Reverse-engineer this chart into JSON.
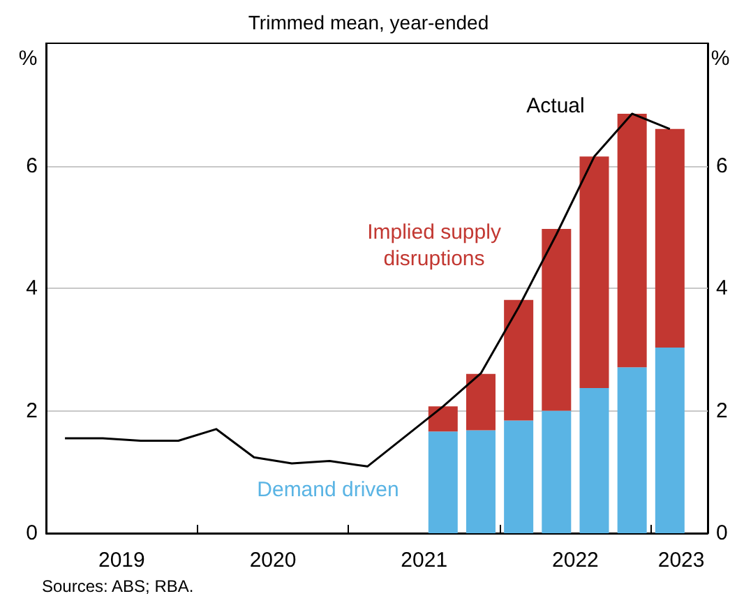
{
  "chart_data": {
    "type": "bar",
    "subtitle": "Trimmed mean, year-ended",
    "ylabel": "%",
    "y2label": "%",
    "stacked": true,
    "x": [
      2021.625,
      2021.875,
      2022.125,
      2022.375,
      2022.625,
      2022.875,
      2023.125
    ],
    "series": [
      {
        "name": "Demand driven",
        "color": "#5ab4e4",
        "values": [
          1.66,
          1.68,
          1.84,
          2.0,
          2.37,
          2.71,
          3.03
        ]
      },
      {
        "name": "Implied supply\ndisruptions",
        "color": "#c23731",
        "values": [
          0.41,
          0.92,
          1.97,
          2.97,
          3.78,
          4.14,
          3.57
        ]
      },
      {
        "name": "Actual",
        "type": "line",
        "color": "#000000",
        "x": [
          2019.125,
          2019.375,
          2019.625,
          2019.875,
          2020.125,
          2020.375,
          2020.625,
          2020.875,
          2021.125,
          2021.375,
          2021.625,
          2021.875,
          2022.125,
          2022.375,
          2022.625,
          2022.875,
          2023.125
        ],
        "values": [
          1.55,
          1.55,
          1.51,
          1.51,
          1.7,
          1.24,
          1.14,
          1.18,
          1.09,
          1.58,
          2.07,
          2.61,
          3.69,
          4.88,
          6.15,
          6.85,
          6.6
        ]
      }
    ],
    "xlim": [
      2019,
      2023.375
    ],
    "xticks": [
      {
        "value": 2019.5,
        "label": "2019"
      },
      {
        "value": 2020,
        "label": null
      },
      {
        "value": 2020.5,
        "label": "2020"
      },
      {
        "value": 2021,
        "label": null
      },
      {
        "value": 2021.5,
        "label": "2021"
      },
      {
        "value": 2022,
        "label": null
      },
      {
        "value": 2022.5,
        "label": "2022"
      },
      {
        "value": 2023,
        "label": null
      },
      {
        "value": 2023.2,
        "label": "2023"
      }
    ],
    "ylim": [
      0,
      8
    ],
    "yticks": [
      0,
      2,
      4,
      6
    ],
    "y2lim": [
      0,
      8
    ],
    "y2ticks": [
      0,
      2,
      4,
      6
    ],
    "grid": "y",
    "legend": false,
    "marker": "none",
    "line_style": "solid",
    "annotations": [
      "Sources: ABS; RBA."
    ]
  }
}
